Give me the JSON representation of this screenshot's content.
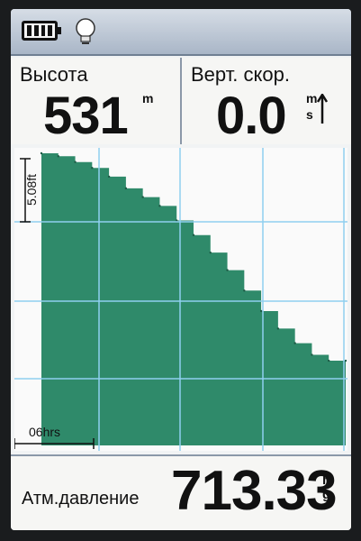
{
  "status_bar": {
    "battery_icon": "battery-full-icon",
    "backlight_icon": "lightbulb-icon"
  },
  "fields": {
    "altitude": {
      "label": "Высота",
      "value": "531",
      "unit": "m"
    },
    "vertical_speed": {
      "label": "Верт. скор.",
      "value": "0.0",
      "unit_top": "m",
      "unit_bottom": "s",
      "icon": "arrow-up-icon"
    }
  },
  "chart_data": {
    "type": "area",
    "y_scale_label": "5.08ft",
    "x_scale_label": "06hrs",
    "series": [
      {
        "values": [
          100,
          99,
          97,
          95,
          92,
          88,
          85,
          82,
          77,
          72,
          66,
          60,
          53,
          46,
          40,
          35,
          31,
          29,
          29
        ]
      }
    ],
    "grid": true
  },
  "footer": {
    "label": "Атм.давление",
    "value": "713.33",
    "unit_top": "h",
    "unit_bottom": "g"
  },
  "colors": {
    "fill": "#2f8a6a",
    "grid": "#8fd0f0",
    "background": "#f1f3f4"
  }
}
